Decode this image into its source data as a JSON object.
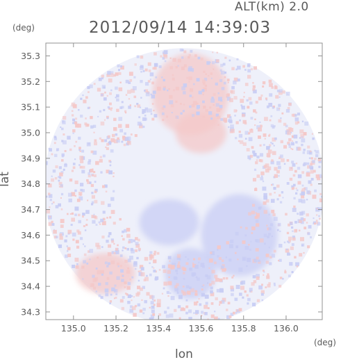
{
  "header": {
    "altitude_label": "ALT(km) 2.0",
    "timestamp": "2012/09/14 14:39:03"
  },
  "chart_data": {
    "type": "heatmap",
    "title": "2012/09/14 14:39:03",
    "xlabel": "lon",
    "ylabel": "lat",
    "x_unit": "(deg)",
    "y_unit": "(deg)",
    "xlim": [
      134.87,
      136.17
    ],
    "ylim": [
      34.27,
      35.35
    ],
    "x_ticks": [
      135.0,
      135.2,
      135.4,
      135.6,
      135.8,
      136.0
    ],
    "x_tick_labels": [
      "135.0",
      "135.2",
      "135.4",
      "135.6",
      "135.8",
      "136.0"
    ],
    "y_ticks": [
      34.3,
      34.4,
      34.5,
      34.6,
      34.7,
      34.8,
      34.9,
      35.0,
      35.1,
      35.2,
      35.3
    ],
    "y_tick_labels": [
      "34.3",
      "34.4",
      "34.5",
      "34.6",
      "34.7",
      "34.8",
      "34.9",
      "35.0",
      "35.1",
      "35.2",
      "35.3"
    ],
    "grid": false,
    "radar_center": [
      135.52,
      34.79
    ],
    "radar_radius_lon": 0.66,
    "radar_radius_lat": 0.54,
    "colors": {
      "positive": "#f4c8c8",
      "negative": "#c8cdf4",
      "neutral": "#eef0fa",
      "axis": "#808080",
      "text": "#5a5a5a"
    },
    "regions": [
      {
        "sign": "positive",
        "lon": 135.55,
        "lat": 35.15,
        "rlon": 0.18,
        "rlat": 0.16
      },
      {
        "sign": "positive",
        "lon": 135.6,
        "lat": 35.0,
        "rlon": 0.12,
        "rlat": 0.08
      },
      {
        "sign": "negative",
        "lon": 135.45,
        "lat": 34.65,
        "rlon": 0.14,
        "rlat": 0.09
      },
      {
        "sign": "negative",
        "lon": 135.78,
        "lat": 34.6,
        "rlon": 0.18,
        "rlat": 0.16
      },
      {
        "sign": "negative",
        "lon": 135.55,
        "lat": 34.45,
        "rlon": 0.12,
        "rlat": 0.1
      },
      {
        "sign": "positive",
        "lon": 135.15,
        "lat": 34.45,
        "rlon": 0.14,
        "rlat": 0.08
      }
    ]
  }
}
